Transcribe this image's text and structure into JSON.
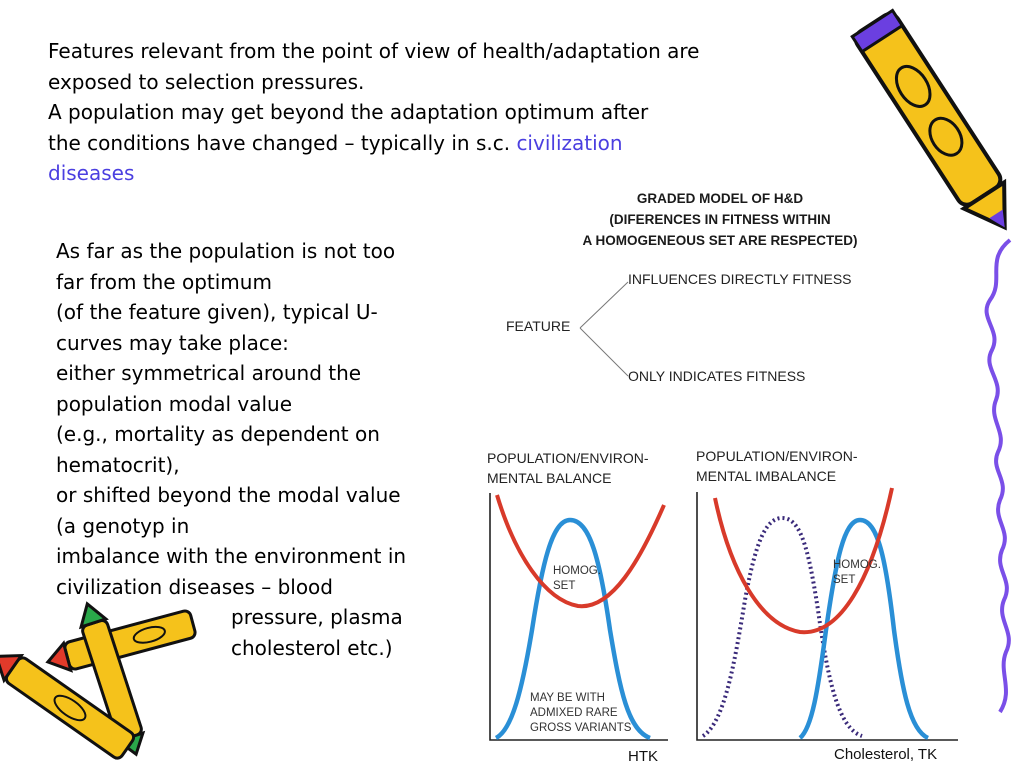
{
  "intro": {
    "line1": "Features relevant from the point of view of health/adaptation are",
    "line2": "exposed to selection pressures.",
    "line3": "A population may get beyond the adaptation optimum after",
    "line4_prefix": "the conditions have changed – typically in s.c. ",
    "line4_accent": "civilization",
    "line5_accent": "diseases"
  },
  "body_text": {
    "lines": [
      "As far as the population is not too",
      "far from the optimum",
      "(of the feature given), typical U-",
      "curves may take place:",
      "either symmetrical around the",
      "population modal value",
      "(e.g., mortality as dependent on",
      "hematocrit),",
      "or shifted beyond the modal value",
      "(a genotyp in",
      "imbalance with the environment in",
      "civilization diseases – blood"
    ],
    "indented_lines": [
      "pressure, plasma",
      "cholesterol etc.)"
    ]
  },
  "graded_model": {
    "title_line1": "GRADED MODEL OF H&D",
    "title_line2": "(DIFERENCES IN FITNESS WITHIN",
    "title_line3": "A HOMOGENEOUS SET ARE RESPECTED)",
    "root": "FEATURE",
    "branch_top": "INFLUENCES DIRECTLY FITNESS",
    "branch_bottom": "ONLY INDICATES FITNESS"
  },
  "panel_left": {
    "title_line1": "POPULATION/ENVIRON-",
    "title_line2": "MENTAL BALANCE",
    "curve_label_line1": "HOMOG.",
    "curve_label_line2": "SET",
    "note_line1": "MAY BE WITH",
    "note_line2": "ADMIXED RARE",
    "note_line3": "GROSS VARIANTS",
    "x_axis": "HTK"
  },
  "panel_right": {
    "title_line1": "POPULATION/ENVIRON-",
    "title_line2": "MENTAL IMBALANCE",
    "curve_label_line1": "HOMOG.",
    "curve_label_line2": "SET",
    "x_axis": "Cholesterol, TK"
  },
  "colors": {
    "accent_text": "#4b3fe0",
    "u_curve": "#d83a2a",
    "population_curve": "#2a8fd6",
    "shifted_curve": "#3a2a7a",
    "crayon_body": "#f5c21b",
    "crayon_tip_red": "#e23a2a",
    "crayon_tip_purple": "#6b3fe0",
    "crayon_tip_green": "#2aa84a",
    "squiggle": "#7a4fe8"
  },
  "icons": [
    "crayon-icon-top-right",
    "crayon-cluster-icon-bottom-left",
    "squiggle-decoration"
  ]
}
